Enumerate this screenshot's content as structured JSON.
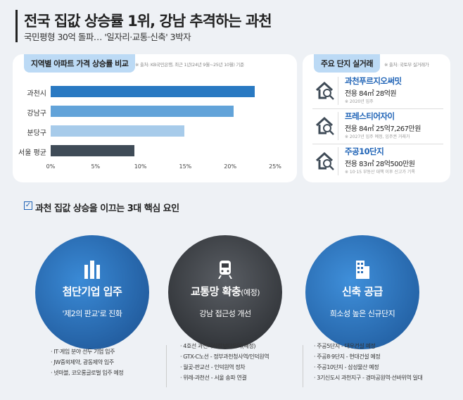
{
  "header": {
    "title": "전국 집값 상승률 1위, 강남 추격하는 과천",
    "subtitle": "국민평형 30억 돌파… '일자리·교통·신축' 3박자"
  },
  "chart_panel": {
    "label": "지역별 아파트 가격 상승률 비교",
    "source": "※ 출처: KB국민은행, 최근 1년(24년 9월~25년 10월) 기준"
  },
  "chart_data": {
    "type": "bar",
    "orientation": "horizontal",
    "categories": [
      "과천시",
      "강남구",
      "분당구",
      "서울 평균"
    ],
    "values": [
      22.7,
      20.4,
      14.9,
      9.3
    ],
    "colors": [
      "#2979c2",
      "#62a3d9",
      "#a7cbea",
      "#3f4b57"
    ],
    "xlim": [
      0,
      25
    ],
    "xticks": [
      "0%",
      "5%",
      "10%",
      "15%",
      "20%",
      "25%"
    ],
    "grid": false
  },
  "deals": {
    "label": "주요 단지 실거래",
    "source": "※ 출처: 국토부 실거래가",
    "items": [
      {
        "name": "과천푸르지오써밋",
        "price": "전용 84㎡ 28억원",
        "note": "※ 2020년 입주"
      },
      {
        "name": "프레스티어자이",
        "price": "전용 84㎡ 25억7,267만원",
        "note": "※ 2027년 입주 예정, 입주권 거래가"
      },
      {
        "name": "주공10단지",
        "price": "전용 83㎡ 28억500만원",
        "note": "※ 10·15 부동산 대책 이후 신고가 기록"
      }
    ]
  },
  "factors": {
    "title": "과천 집값 상승을 이끄는 3대 핵심 요인",
    "items": [
      {
        "title": "첨단기업 입주",
        "title_suffix": "",
        "sub": "'제2의 판교'로 진화",
        "icon": "buildings-icon",
        "bullets": [
          "· IT·게임 분야 선두 기업 입주",
          "· JW중외제약, 광동제약 입주",
          "· 넷마블, 코오롱글로벌 입주 예정"
        ]
      },
      {
        "title": "교통망 확충",
        "title_suffix": "(예정)",
        "sub": "강남 접근성 개선",
        "icon": "train-icon",
        "bullets": [
          "· 4호선 과천지식정보타운역(예정)",
          "· GTX-C노선 - 정부과천청사역/인덕원역",
          "· 월곶-판교선 - 인덕원역 정차",
          "· 위례-과천선 - 서울 송파 연결"
        ]
      },
      {
        "title": "신축 공급",
        "title_suffix": "",
        "sub": "희소성 높은 신규단지",
        "icon": "apartment-icon",
        "bullets": [
          "· 주공5단지 - 대우건설 예정",
          "· 주공8·9단지 - 현대건설 예정",
          "· 주공10단지 - 삼성물산 예정",
          "· 3기신도시 과천지구 - 경마공원역·선바위역 일대"
        ]
      }
    ]
  }
}
